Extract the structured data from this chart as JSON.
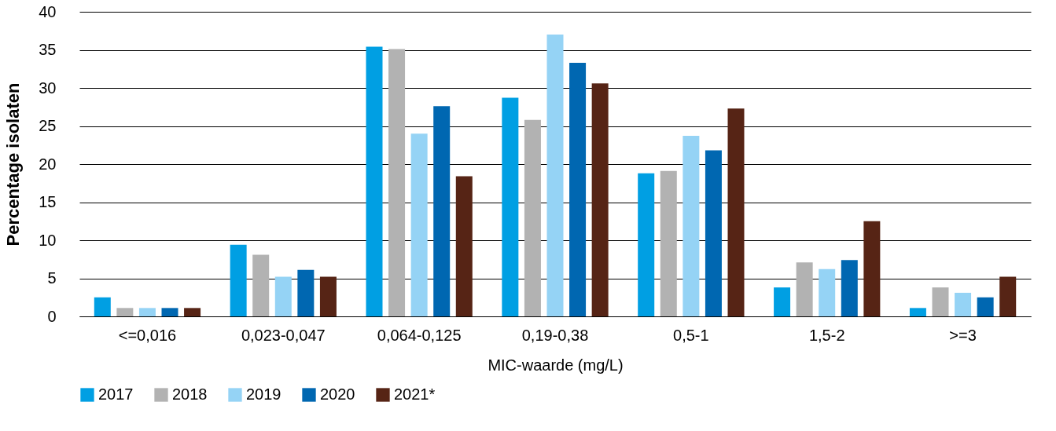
{
  "chart_data": {
    "type": "bar",
    "xlabel": "MIC-waarde (mg/L)",
    "ylabel": "Percentage isolaten",
    "categories": [
      "<=0,016",
      "0,023-0,047",
      "0,064-0,125",
      "0,19-0,38",
      "0,5-1",
      "1,5-2",
      ">=3"
    ],
    "series": [
      {
        "name": "2017",
        "color": "#009fe3",
        "values": [
          2.5,
          9.4,
          35.4,
          28.7,
          18.8,
          3.8,
          1.1
        ]
      },
      {
        "name": "2018",
        "color": "#b2b2b2",
        "values": [
          1.1,
          8.1,
          35.1,
          25.8,
          19.1,
          7.1,
          3.8
        ]
      },
      {
        "name": "2019",
        "color": "#95d3f5",
        "values": [
          1.1,
          5.2,
          24.0,
          37.0,
          23.7,
          6.2,
          3.1
        ]
      },
      {
        "name": "2020",
        "color": "#0067b1",
        "values": [
          1.1,
          6.1,
          27.6,
          33.3,
          21.8,
          7.4,
          2.5
        ]
      },
      {
        "name": "2021*",
        "color": "#562415",
        "values": [
          1.1,
          5.2,
          18.4,
          30.6,
          27.3,
          12.5,
          5.2
        ]
      }
    ],
    "ylim": [
      0,
      40
    ],
    "yticks": [
      0,
      5,
      10,
      15,
      20,
      25,
      30,
      35,
      40
    ],
    "grid": "y",
    "legend": "bottom"
  }
}
